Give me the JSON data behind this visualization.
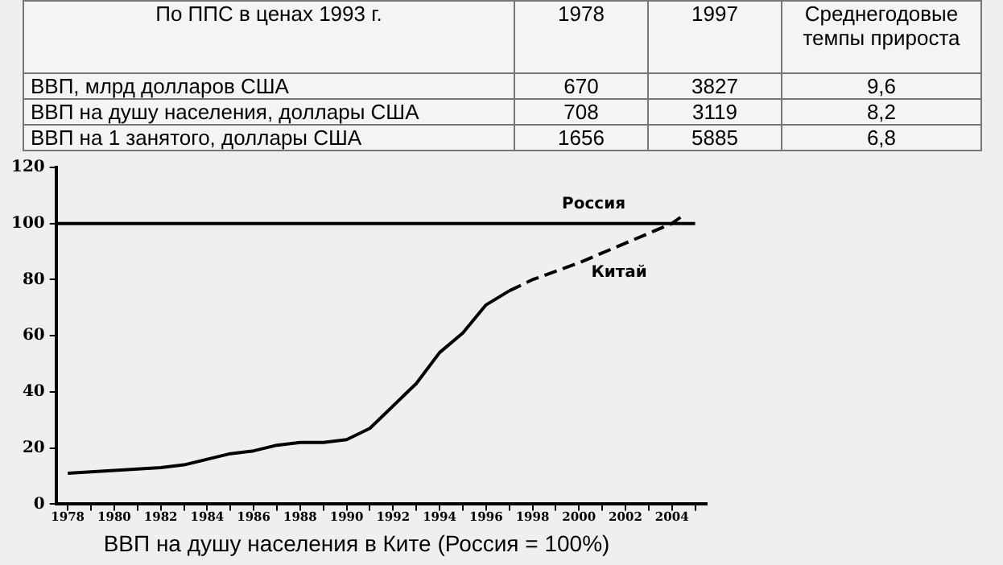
{
  "chart_data": [
    {
      "type": "other",
      "annotations": [
        "По ППС в ценах 1993 г.",
        "1978",
        "1997",
        "Среднегодовые темпы прироста",
        "ВВП, млрд долларов США",
        "670",
        "3827",
        "9,6",
        "ВВП на душу населения, доллары США",
        "708",
        "3119",
        "8,2",
        "ВВП на 1 занятого, доллары США",
        "1656",
        "5885",
        "6,8"
      ]
    },
    {
      "type": "line",
      "title": "ВВП на душу населения в Ките (Россия = 100%)",
      "xlim": [
        1977.5,
        2005.5
      ],
      "ylim": [
        0,
        120
      ],
      "yticks": [
        0,
        20,
        40,
        60,
        80,
        100,
        120
      ],
      "xticks": [
        1978,
        {
          "value": 1979,
          "label": null
        },
        1980,
        {
          "value": 1981,
          "label": null
        },
        1982,
        {
          "value": 1983,
          "label": null
        },
        1984,
        {
          "value": 1985,
          "label": null
        },
        1986,
        {
          "value": 1987,
          "label": null
        },
        1988,
        {
          "value": 1989,
          "label": null
        },
        1990,
        {
          "value": 1991,
          "label": null
        },
        1992,
        {
          "value": 1993,
          "label": null
        },
        1994,
        {
          "value": 1995,
          "label": null
        },
        1996,
        {
          "value": 1997,
          "label": null
        },
        1998,
        {
          "value": 1999,
          "label": null
        },
        2000,
        {
          "value": 2001,
          "label": null
        },
        2002,
        {
          "value": 2003,
          "label": null
        },
        2004,
        {
          "value": 2005,
          "label": null
        }
      ],
      "grid": false,
      "legend": false,
      "marker": "none",
      "series": [
        {
          "name": "Россия",
          "color": "#000000",
          "line_style": "solid",
          "x": [
            1977.5,
            2005
          ],
          "values": [
            100,
            100
          ]
        },
        {
          "color": "#000000",
          "line_style": "solid",
          "x": [
            1978,
            1980,
            1982,
            1983,
            1984,
            1985,
            1986,
            1987,
            1988,
            1989,
            1990,
            1991,
            1992,
            1993,
            1994,
            1995,
            1996,
            1997
          ],
          "values": [
            11,
            12,
            13,
            14,
            16,
            18,
            19,
            21,
            22,
            22,
            23,
            27,
            35,
            43,
            54,
            61,
            71,
            76
          ]
        },
        {
          "name": "Китай",
          "color": "#000000",
          "line_style": "dashed",
          "x": [
            1997,
            1998,
            2000,
            2002,
            2004,
            2004.5
          ],
          "values": [
            76,
            80,
            86,
            93,
            100,
            103
          ]
        }
      ]
    }
  ]
}
